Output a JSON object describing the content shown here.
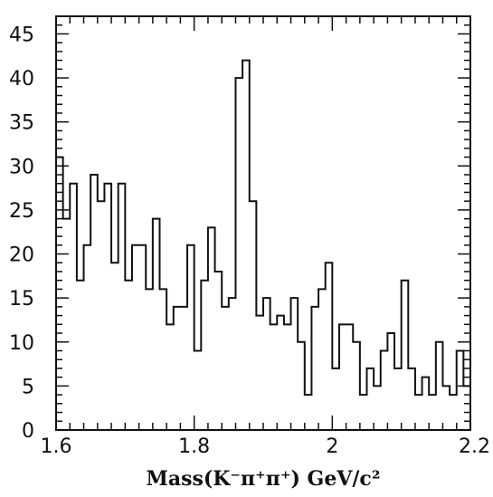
{
  "chart_data": {
    "type": "histogram",
    "title": "",
    "xlabel": "Mass(K⁻π⁺π⁺) GeV/c²",
    "ylabel": "",
    "xlim": [
      1.6,
      2.2
    ],
    "ylim": [
      0,
      47
    ],
    "bin_width": 0.01,
    "bin_edges_start": 1.6,
    "values": [
      31,
      24,
      28,
      17,
      21,
      29,
      26,
      28,
      19,
      28,
      17,
      21,
      21,
      16,
      24,
      16,
      12,
      14,
      14,
      21,
      9,
      17,
      23,
      18,
      14,
      15,
      40,
      42,
      26,
      13,
      15,
      12,
      13,
      12,
      15,
      10,
      4,
      14,
      16,
      19,
      7,
      12,
      12,
      10,
      4,
      7,
      5,
      9,
      11,
      7,
      17,
      7,
      4,
      6,
      4,
      10,
      5,
      4,
      9,
      5
    ],
    "xticks": [
      1.6,
      1.8,
      2,
      2.2
    ],
    "xtick_labels": [
      "1.6",
      "1.8",
      "2",
      "2.2"
    ],
    "yticks": [
      0,
      5,
      10,
      15,
      20,
      25,
      30,
      35,
      40,
      45
    ],
    "ytick_labels": [
      "0",
      "5",
      "10",
      "15",
      "20",
      "25",
      "30",
      "35",
      "40",
      "45"
    ],
    "grid": false
  }
}
